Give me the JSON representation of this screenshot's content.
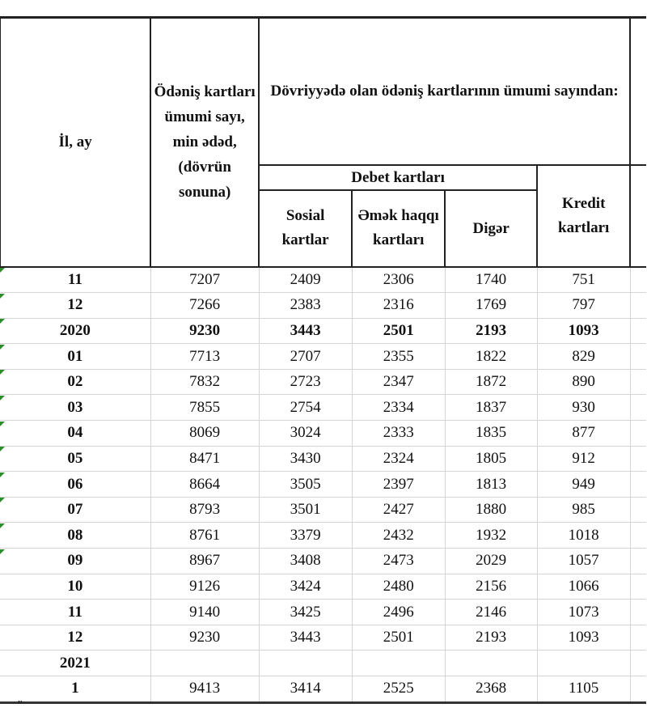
{
  "header": {
    "period": "İl, ay",
    "total": "Ödəniş kartları ümumi sayı, min ədəd, (dövrün sonuna)",
    "of_total": "Dövriyyədə olan ödəniş kartlarının ümumi sayından:",
    "debit": "Debet kartları",
    "social": "Sosial kartlar",
    "salary": "Əmək haqqı kartları",
    "other": "Digər",
    "credit": "Kredit kartları"
  },
  "rows": [
    {
      "period": "11",
      "total": "7207",
      "social": "2409",
      "salary": "2306",
      "other": "1740",
      "credit": "751"
    },
    {
      "period": "12",
      "total": "7266",
      "social": "2383",
      "salary": "2316",
      "other": "1769",
      "credit": "797"
    },
    {
      "period": "2020",
      "total": "9230",
      "social": "3443",
      "salary": "2501",
      "other": "2193",
      "credit": "1093",
      "bold": true
    },
    {
      "period": "01",
      "total": "7713",
      "social": "2707",
      "salary": "2355",
      "other": "1822",
      "credit": "829"
    },
    {
      "period": "02",
      "total": "7832",
      "social": "2723",
      "salary": "2347",
      "other": "1872",
      "credit": "890"
    },
    {
      "period": "03",
      "total": "7855",
      "social": "2754",
      "salary": "2334",
      "other": "1837",
      "credit": "930"
    },
    {
      "period": "04",
      "total": "8069",
      "social": "3024",
      "salary": "2333",
      "other": "1835",
      "credit": "877"
    },
    {
      "period": "05",
      "total": "8471",
      "social": "3430",
      "salary": "2324",
      "other": "1805",
      "credit": "912"
    },
    {
      "period": "06",
      "total": "8664",
      "social": "3505",
      "salary": "2397",
      "other": "1813",
      "credit": "949"
    },
    {
      "period": "07",
      "total": "8793",
      "social": "3501",
      "salary": "2427",
      "other": "1880",
      "credit": "985"
    },
    {
      "period": "08",
      "total": "8761",
      "social": "3379",
      "salary": "2432",
      "other": "1932",
      "credit": "1018"
    },
    {
      "period": "09",
      "total": "8967",
      "social": "3408",
      "salary": "2473",
      "other": "2029",
      "credit": "1057"
    },
    {
      "period": "10",
      "total": "9126",
      "social": "3424",
      "salary": "2480",
      "other": "2156",
      "credit": "1066"
    },
    {
      "period": "11",
      "total": "9140",
      "social": "3425",
      "salary": "2496",
      "other": "2146",
      "credit": "1073"
    },
    {
      "period": "12",
      "total": "9230",
      "social": "3443",
      "salary": "2501",
      "other": "2193",
      "credit": "1093"
    },
    {
      "period": "2021",
      "total": "",
      "social": "",
      "salary": "",
      "other": "",
      "credit": ""
    },
    {
      "period": "1",
      "total": "9413",
      "social": "3414",
      "salary": "2525",
      "other": "2368",
      "credit": "1105"
    }
  ],
  "footnote_mark": "\""
}
